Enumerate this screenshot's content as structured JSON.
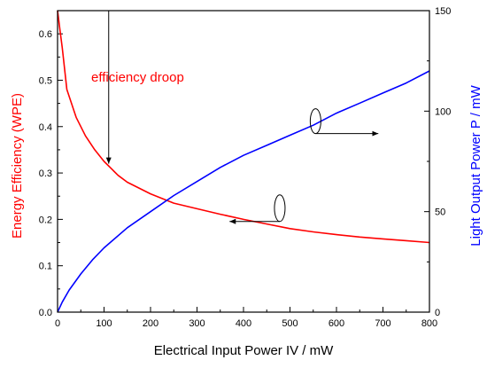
{
  "chart_data": {
    "type": "line",
    "xlabel": "Electrical Input Power IV / mW",
    "ylabel_left": "Energy Efficiency (WPE)",
    "ylabel_right": "Light Output Power P / mW",
    "xlim": [
      0,
      800
    ],
    "ylim_left": [
      0,
      0.65
    ],
    "ylim_right": [
      0,
      150
    ],
    "x_ticks": [
      0,
      100,
      200,
      300,
      400,
      500,
      600,
      700,
      800
    ],
    "y_left_ticks": [
      0.0,
      0.1,
      0.2,
      0.3,
      0.4,
      0.5,
      0.6
    ],
    "y_left_tick_labels": [
      "0.0",
      "0.1",
      "0.2",
      "0.3",
      "0.4",
      "0.5",
      "0.6"
    ],
    "y_right_ticks": [
      0,
      50,
      100,
      150
    ],
    "grid": false,
    "legend": "none",
    "series": [
      {
        "axis": "left",
        "color": "#ff0000",
        "x": [
          0,
          5,
          10,
          20,
          40,
          60,
          80,
          100,
          130,
          150,
          200,
          250,
          300,
          350,
          400,
          450,
          500,
          550,
          600,
          650,
          700,
          750,
          800
        ],
        "y": [
          0.65,
          0.61,
          0.57,
          0.48,
          0.42,
          0.38,
          0.35,
          0.325,
          0.295,
          0.28,
          0.255,
          0.235,
          0.223,
          0.211,
          0.2,
          0.19,
          0.18,
          0.173,
          0.167,
          0.162,
          0.158,
          0.154,
          0.15
        ]
      },
      {
        "axis": "right",
        "color": "#0000ff",
        "x": [
          0,
          10,
          25,
          50,
          75,
          100,
          150,
          200,
          250,
          300,
          350,
          400,
          450,
          500,
          550,
          600,
          650,
          700,
          750,
          800
        ],
        "y": [
          0,
          5,
          11,
          19,
          26,
          32,
          42,
          50,
          58,
          65,
          72,
          78,
          83,
          88,
          93,
          99,
          104,
          109,
          114,
          120
        ]
      }
    ],
    "annotations": {
      "droop_text": "efficiency droop",
      "droop_color": "#ff0000",
      "droop_arrow_x": 110,
      "droop_arrow_y_from": 0.65,
      "droop_arrow_y_to": 0.32,
      "right_ellipse": {
        "x": 555,
        "y": 95,
        "arrow_to_x": 690,
        "points_to": "right axis"
      },
      "left_ellipse": {
        "x": 478,
        "y": 0.205,
        "arrow_to_x": 370,
        "points_to": "left axis"
      }
    }
  }
}
